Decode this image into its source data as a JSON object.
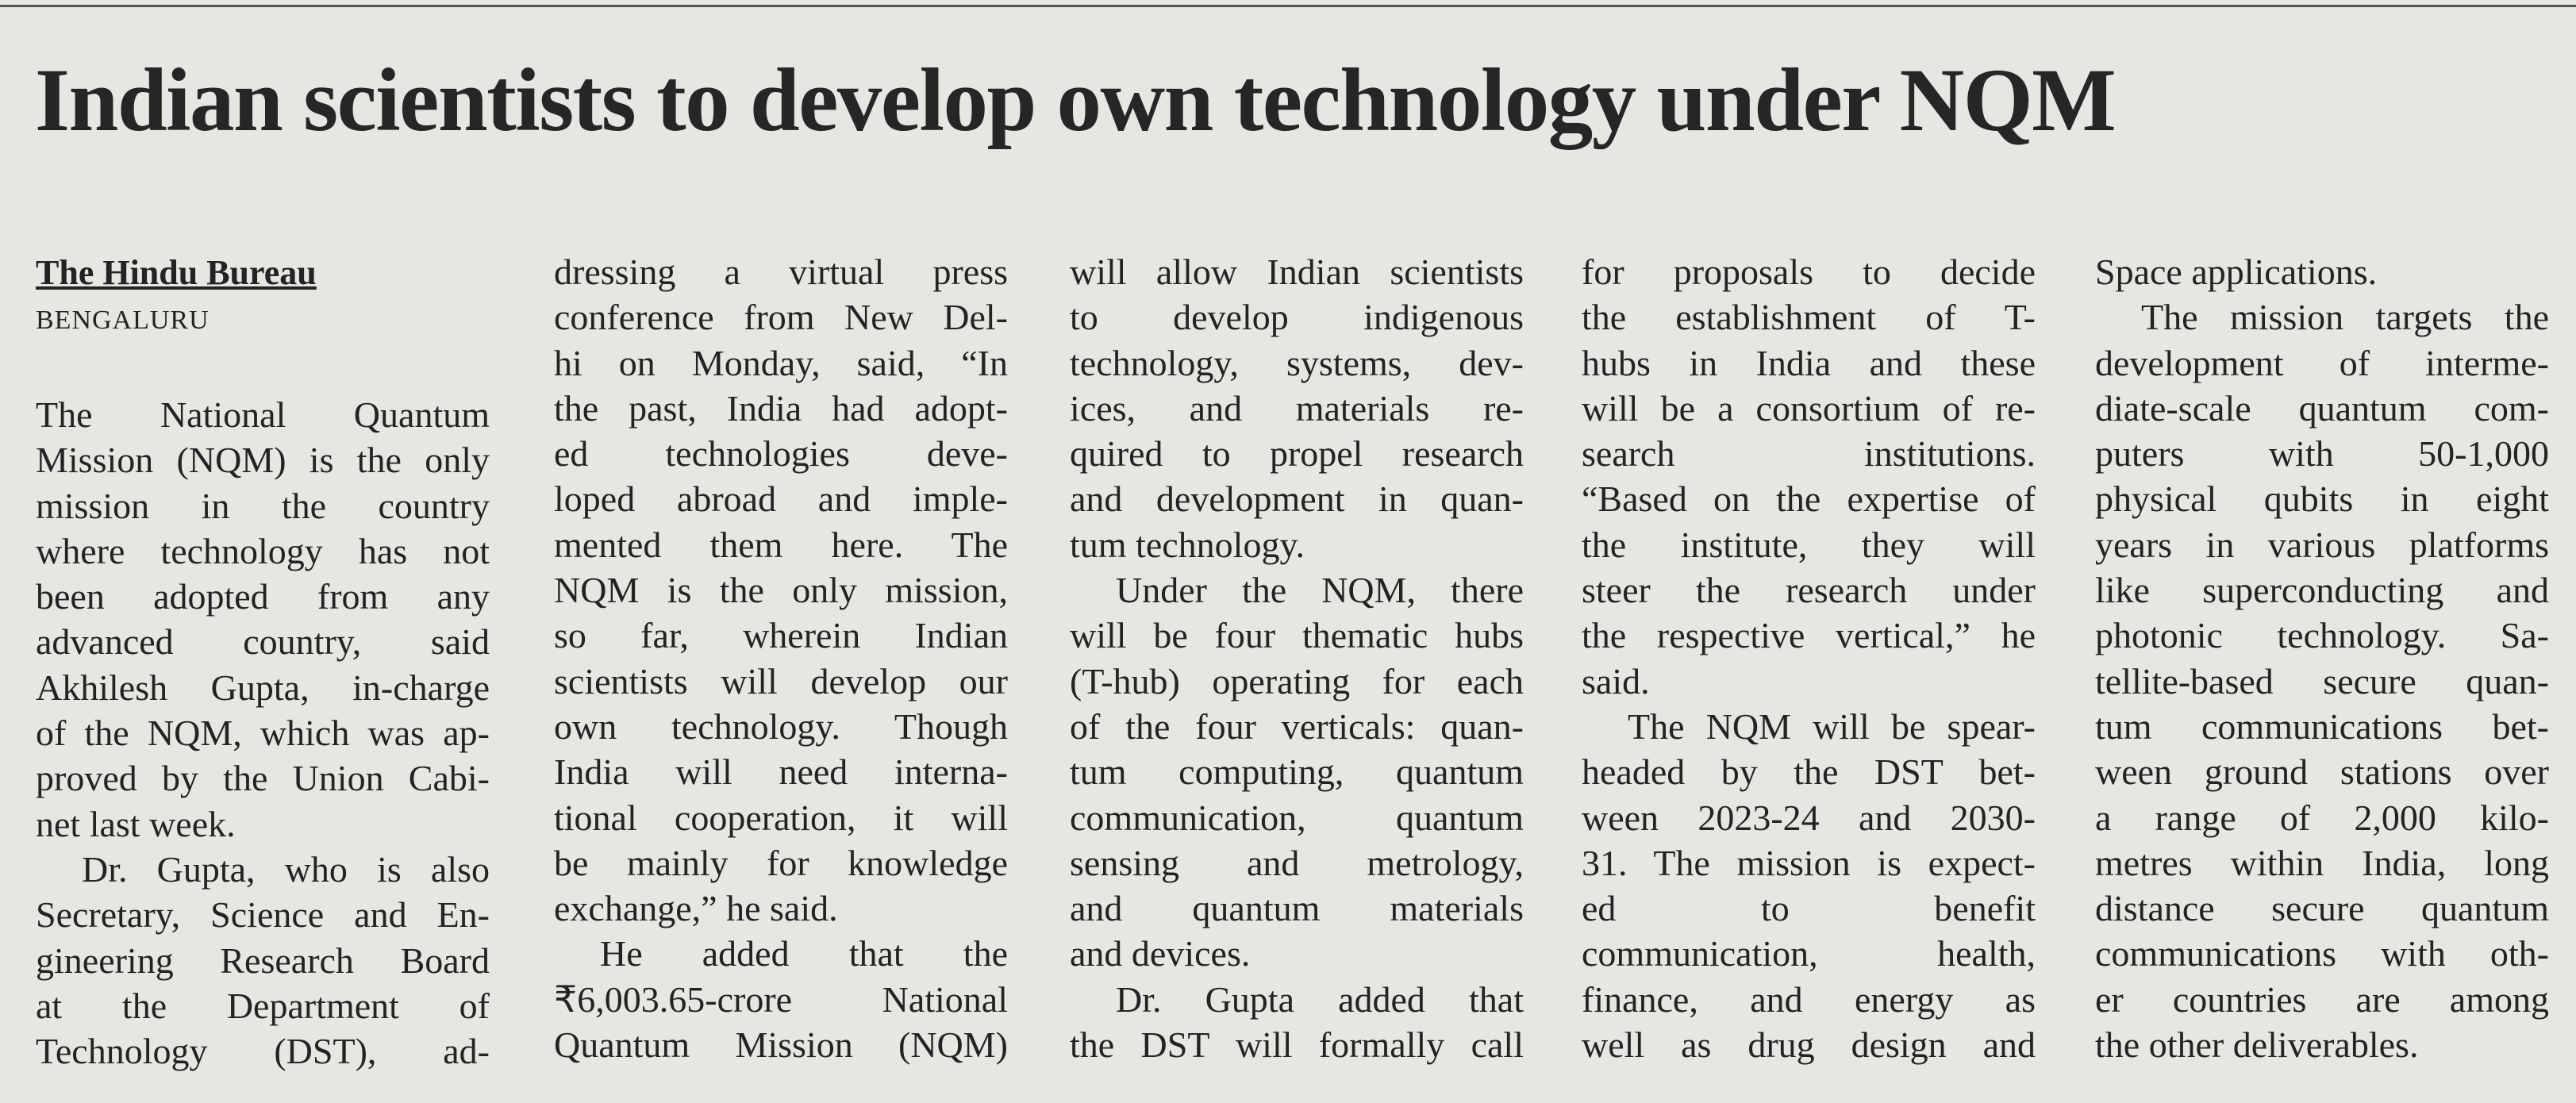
{
  "headline": "Indian scientists to develop own technology under NQM",
  "byline": "The Hindu Bureau",
  "dateline": "BENGALURU",
  "columns": [
    {
      "paragraphs": [
        {
          "lines": [
            "The National Quantum",
            "Mission (NQM) is the only",
            "mission in the country",
            "where technology has not",
            "been adopted from any",
            "advanced country, said",
            "Akhilesh Gupta, in-charge",
            "of the NQM, which was ap-",
            "proved by the Union Cabi-",
            "net last week."
          ]
        },
        {
          "lines": [
            "Dr. Gupta, who is also",
            "Secretary, Science and En-",
            "gineering Research Board",
            "at the Department of",
            "Technology (DST), ad-"
          ]
        }
      ]
    },
    {
      "paragraphs": [
        {
          "lines": [
            "dressing a virtual press",
            "conference from New Del-",
            "hi on Monday, said, “In",
            "the past, India had adopt-",
            "ed technologies deve-",
            "loped abroad and imple-",
            "mented them here. The",
            "NQM is the only mission,",
            "so far, wherein Indian",
            "scientists will develop our",
            "own technology. Though",
            "India will need interna-",
            "tional cooperation, it will",
            "be mainly for knowledge",
            "exchange,” he said."
          ]
        },
        {
          "lines": [
            "He added that the",
            "₹6,003.65-crore National",
            "Quantum Mission (NQM)"
          ]
        }
      ]
    },
    {
      "paragraphs": [
        {
          "lines": [
            "will allow Indian scientists",
            "to develop indigenous",
            "technology, systems, dev-",
            "ices, and materials re-",
            "quired to propel research",
            "and development in quan-",
            "tum technology."
          ]
        },
        {
          "lines": [
            "Under the NQM, there",
            "will be four thematic hubs",
            "(T-hub) operating for each",
            "of the four verticals: quan-",
            "tum computing, quantum",
            "communication, quantum",
            "sensing and metrology,",
            "and quantum materials",
            "and devices."
          ]
        },
        {
          "lines": [
            "Dr. Gupta added that",
            "the DST will formally call"
          ]
        }
      ]
    },
    {
      "paragraphs": [
        {
          "lines": [
            "for proposals to decide",
            "the establishment of T-",
            "hubs in India and these",
            "will be a consortium of re-",
            "search institutions.",
            "“Based on the expertise of",
            "the institute, they will",
            "steer the research under",
            "the respective vertical,” he",
            "said."
          ]
        },
        {
          "lines": [
            "The NQM will be spear-",
            "headed by the DST bet-",
            "ween 2023-24 and 2030-",
            "31. The mission is expect-",
            "ed to benefit",
            "communication, health,",
            "finance, and energy as",
            "well as drug design and"
          ]
        }
      ]
    },
    {
      "paragraphs": [
        {
          "lines": [
            "Space applications."
          ]
        },
        {
          "lines": [
            "The mission targets the",
            "development of interme-",
            "diate-scale quantum com-",
            "puters with 50-1,000",
            "physical qubits in eight",
            "years in various platforms",
            "like superconducting and",
            "photonic technology. Sa-",
            "tellite-based secure quan-",
            "tum communications bet-",
            "ween ground stations over",
            "a range of 2,000 kilo-",
            "metres within India, long",
            "distance secure quantum",
            "communications with oth-",
            "er countries are among",
            "the other deliverables."
          ]
        }
      ]
    }
  ]
}
